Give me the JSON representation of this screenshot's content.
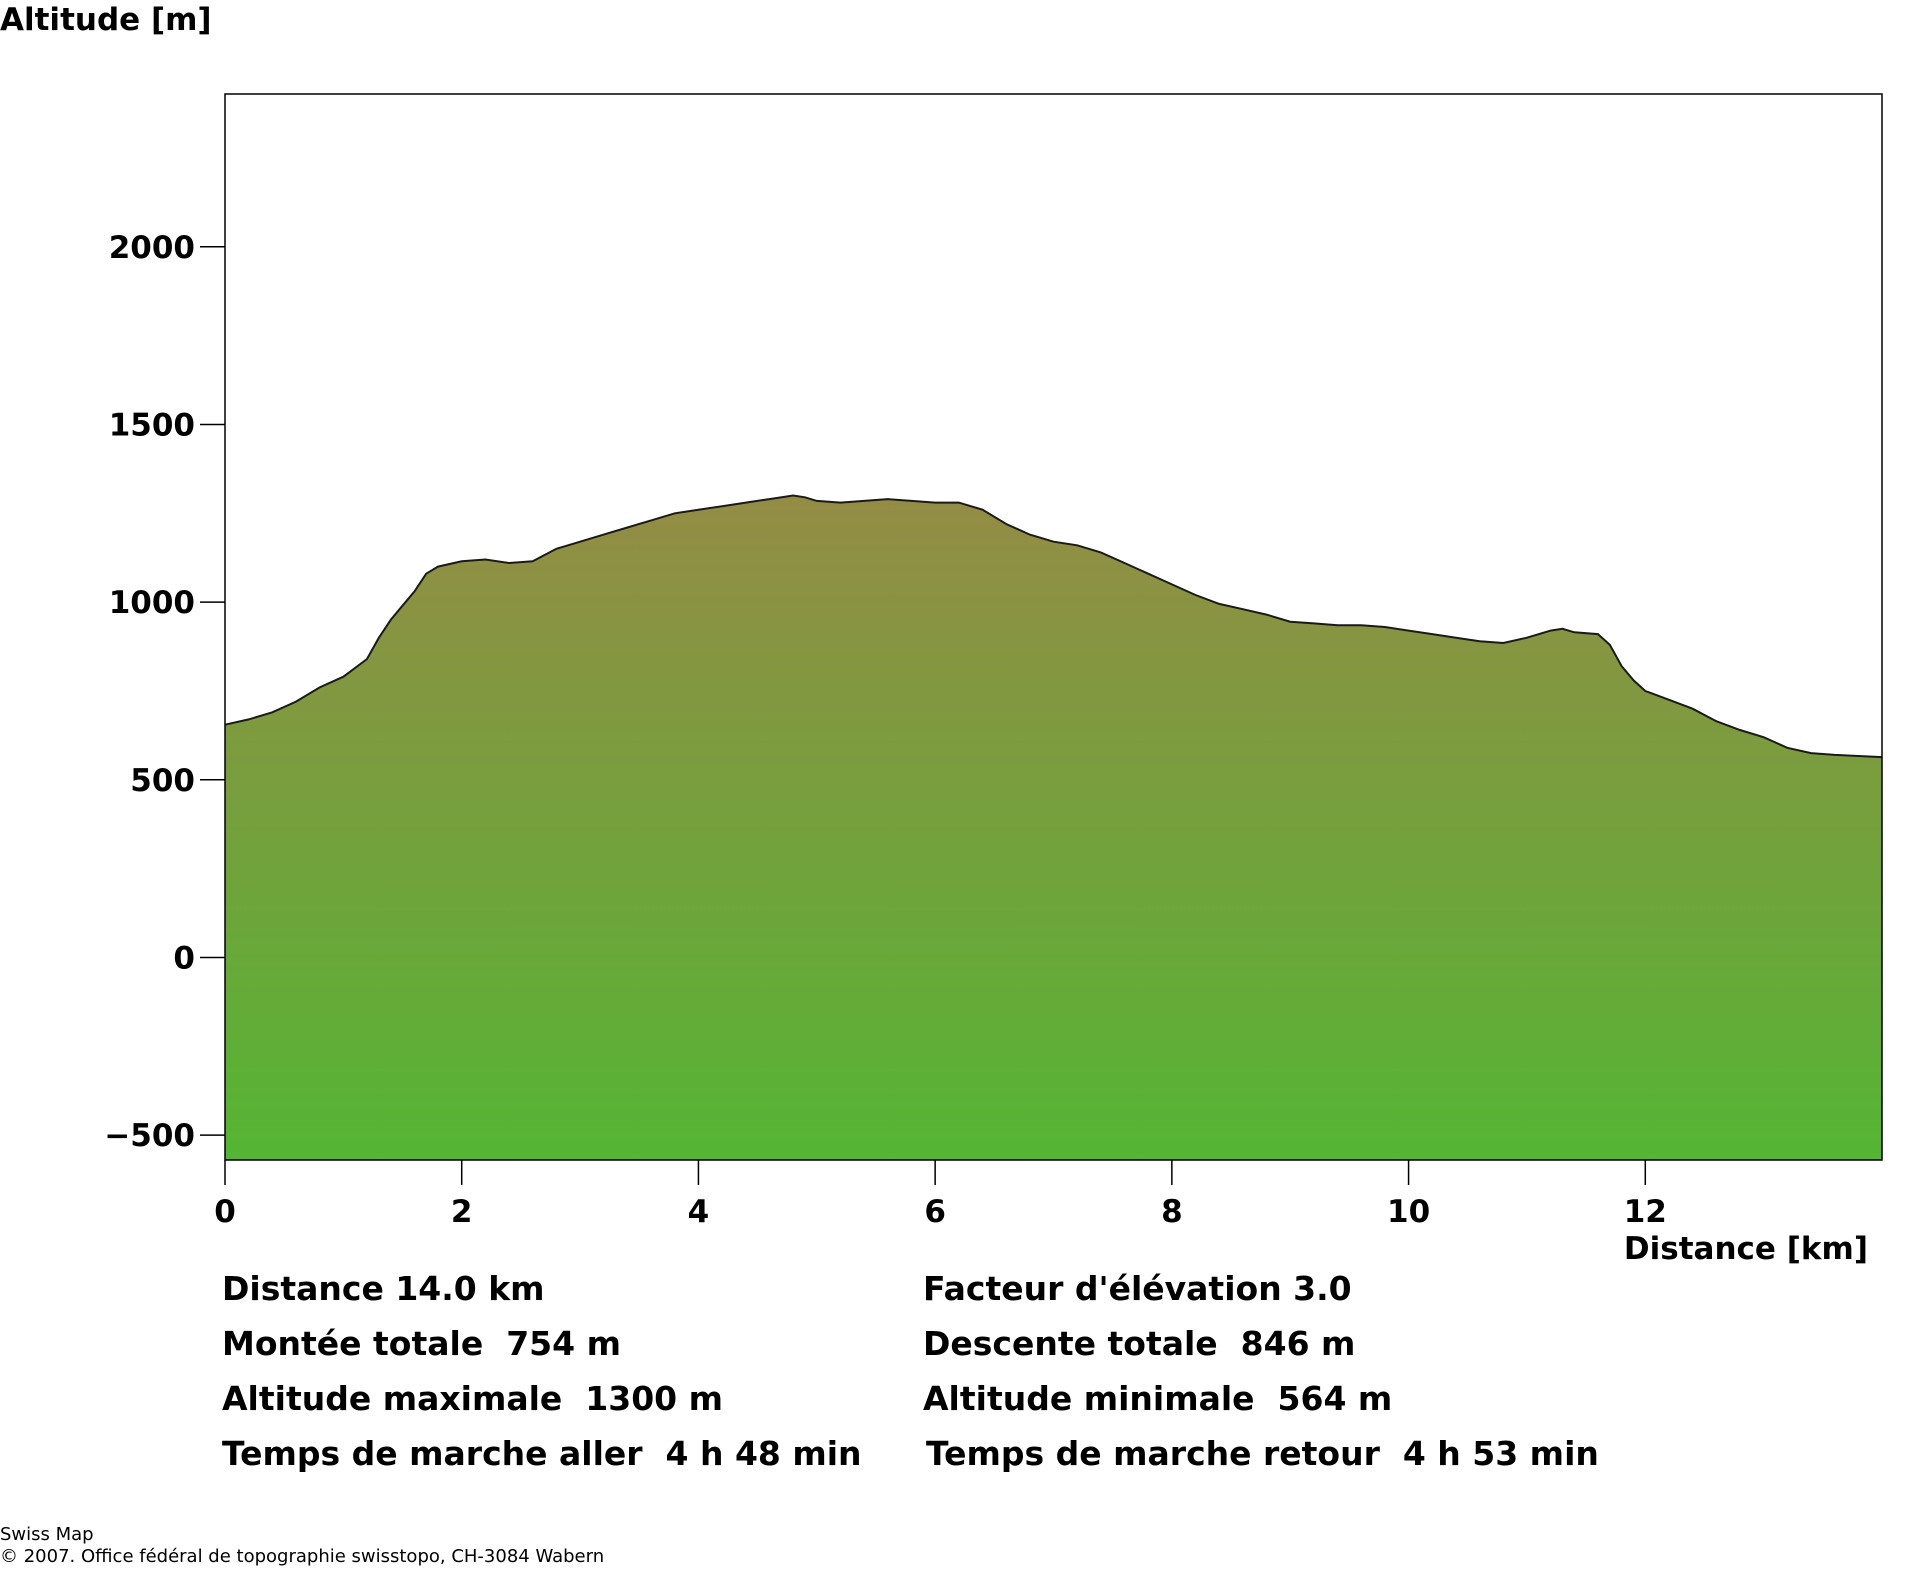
{
  "chart_data": {
    "type": "area",
    "title": "",
    "xlabel": "Distance [km]",
    "ylabel": "Altitude [m]",
    "xlim": [
      0,
      14
    ],
    "ylim": [
      -570,
      2430
    ],
    "x_ticks": [
      "0",
      "2",
      "4",
      "6",
      "8",
      "10",
      "12"
    ],
    "y_ticks": [
      "2000",
      "1500",
      "1000",
      "500",
      "0",
      "−500"
    ],
    "fill_colors": {
      "top": "#948c45",
      "bottom": "#55b534"
    },
    "outline_color": "#1a1a1a",
    "series": [
      {
        "x": [
          0,
          0.2,
          0.4,
          0.6,
          0.8,
          1.0,
          1.2,
          1.3,
          1.4,
          1.5,
          1.6,
          1.7,
          1.8,
          2.0,
          2.2,
          2.4,
          2.6,
          2.8,
          3.0,
          3.2,
          3.4,
          3.6,
          3.8,
          4.0,
          4.2,
          4.4,
          4.6,
          4.8,
          4.9,
          5.0,
          5.2,
          5.4,
          5.6,
          5.8,
          6.0,
          6.2,
          6.4,
          6.6,
          6.8,
          7.0,
          7.2,
          7.4,
          7.6,
          7.8,
          8.0,
          8.2,
          8.4,
          8.6,
          8.8,
          9.0,
          9.2,
          9.4,
          9.6,
          9.8,
          10.0,
          10.2,
          10.4,
          10.6,
          10.8,
          11.0,
          11.2,
          11.3,
          11.4,
          11.6,
          11.7,
          11.8,
          11.9,
          12.0,
          12.2,
          12.4,
          12.6,
          12.8,
          13.0,
          13.2,
          13.4,
          13.6,
          13.8,
          14.0
        ],
        "y": [
          655,
          670,
          690,
          720,
          760,
          790,
          840,
          900,
          950,
          990,
          1030,
          1080,
          1100,
          1115,
          1120,
          1110,
          1115,
          1150,
          1170,
          1190,
          1210,
          1230,
          1250,
          1260,
          1270,
          1280,
          1290,
          1300,
          1295,
          1285,
          1280,
          1285,
          1290,
          1285,
          1280,
          1280,
          1260,
          1220,
          1190,
          1170,
          1160,
          1140,
          1110,
          1080,
          1050,
          1020,
          995,
          980,
          965,
          945,
          940,
          935,
          935,
          930,
          920,
          910,
          900,
          890,
          885,
          900,
          920,
          925,
          915,
          910,
          880,
          820,
          780,
          750,
          725,
          700,
          665,
          640,
          620,
          590,
          575,
          570,
          567,
          564
        ]
      }
    ]
  },
  "stats": {
    "distance": "Distance 14.0 km",
    "elevation_factor": "Facteur d'élévation 3.0",
    "total_ascent": "Montée totale  754 m",
    "total_descent": "Descente totale  846 m",
    "max_altitude": "Altitude maximale  1300 m",
    "min_altitude": "Altitude minimale  564 m",
    "time_outbound": "Temps de marche aller  4 h 48 min",
    "time_return": "Temps de marche retour  4 h 53 min"
  },
  "footer": {
    "line1": "Swiss Map",
    "line2": "© 2007. Office fédéral de topographie swisstopo, CH-3084 Wabern"
  }
}
